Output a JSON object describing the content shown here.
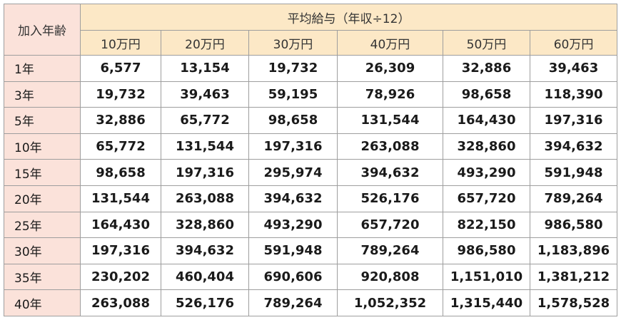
{
  "table": {
    "corner": "加入年齢",
    "group_header": "平均給与（年収÷12）",
    "columns": [
      "10万円",
      "20万円",
      "30万円",
      "40万円",
      "50万円",
      "60万円"
    ],
    "rows": [
      {
        "label": "1年",
        "cells": [
          "6,577",
          "13,154",
          "19,732",
          "26,309",
          "32,886",
          "39,463"
        ]
      },
      {
        "label": "3年",
        "cells": [
          "19,732",
          "39,463",
          "59,195",
          "78,926",
          "98,658",
          "118,390"
        ]
      },
      {
        "label": "5年",
        "cells": [
          "32,886",
          "65,772",
          "98,658",
          "131,544",
          "164,430",
          "197,316"
        ]
      },
      {
        "label": "10年",
        "cells": [
          "65,772",
          "131,544",
          "197,316",
          "263,088",
          "328,860",
          "394,632"
        ]
      },
      {
        "label": "15年",
        "cells": [
          "98,658",
          "197,316",
          "295,974",
          "394,632",
          "493,290",
          "591,948"
        ]
      },
      {
        "label": "20年",
        "cells": [
          "131,544",
          "263,088",
          "394,632",
          "526,176",
          "657,720",
          "789,264"
        ]
      },
      {
        "label": "25年",
        "cells": [
          "164,430",
          "328,860",
          "493,290",
          "657,720",
          "822,150",
          "986,580"
        ]
      },
      {
        "label": "30年",
        "cells": [
          "197,316",
          "394,632",
          "591,948",
          "789,264",
          "986,580",
          "1,183,896"
        ]
      },
      {
        "label": "35年",
        "cells": [
          "230,202",
          "460,404",
          "690,606",
          "920,808",
          "1,151,010",
          "1,381,212"
        ]
      },
      {
        "label": "40年",
        "cells": [
          "263,088",
          "526,176",
          "789,264",
          "1,052,352",
          "1,315,440",
          "1,578,528"
        ]
      }
    ]
  }
}
